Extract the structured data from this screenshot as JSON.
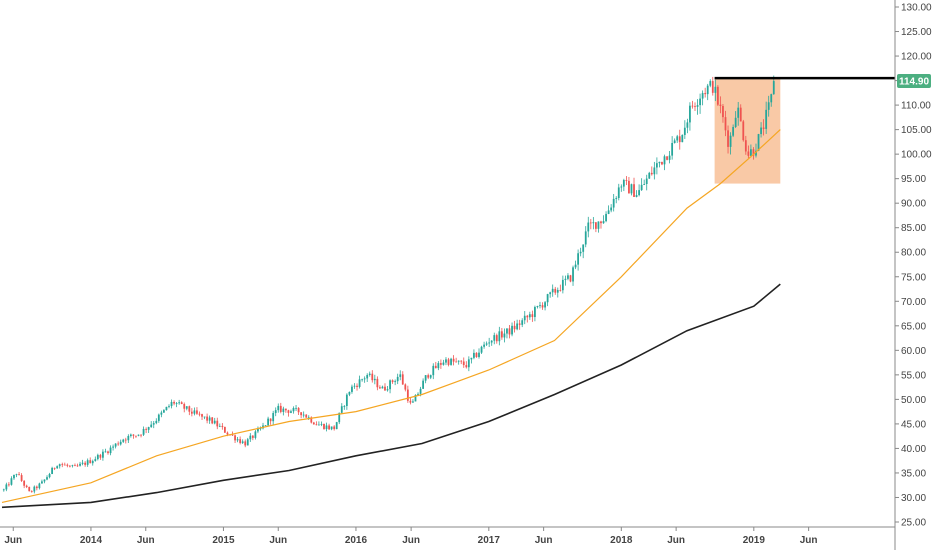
{
  "chart_data": {
    "type": "candlestick",
    "title": "",
    "y_axis": {
      "position": "right",
      "range": [
        25,
        130
      ],
      "tick_labels": [
        "130.00",
        "125.00",
        "120.00",
        "115.00",
        "110.00",
        "105.00",
        "100.00",
        "95.00",
        "90.00",
        "85.00",
        "80.00",
        "75.00",
        "70.00",
        "65.00",
        "60.00",
        "55.00",
        "50.00",
        "45.00",
        "40.00",
        "35.00",
        "30.00",
        "25.00"
      ]
    },
    "x_axis": {
      "range": [
        "2013-05-01",
        "2019-10-15"
      ],
      "tick_labels": [
        {
          "label": "Jun",
          "date": "2013-06-01"
        },
        {
          "label": "2014",
          "date": "2014-01-01"
        },
        {
          "label": "Jun",
          "date": "2014-06-01"
        },
        {
          "label": "2015",
          "date": "2015-01-01"
        },
        {
          "label": "Jun",
          "date": "2015-06-01"
        },
        {
          "label": "2016",
          "date": "2016-01-01"
        },
        {
          "label": "Jun",
          "date": "2016-06-01"
        },
        {
          "label": "2017",
          "date": "2017-01-01"
        },
        {
          "label": "Jun",
          "date": "2017-06-01"
        },
        {
          "label": "2018",
          "date": "2018-01-01"
        },
        {
          "label": "Jun",
          "date": "2018-06-01"
        },
        {
          "label": "2019",
          "date": "2019-01-01"
        },
        {
          "label": "Jun",
          "date": "2019-06-01"
        }
      ]
    },
    "price_path": [
      [
        "2013-05-06",
        31.5
      ],
      [
        "2013-06-10",
        35
      ],
      [
        "2013-07-15",
        31
      ],
      [
        "2013-08-20",
        33
      ],
      [
        "2013-10-01",
        37
      ],
      [
        "2013-11-15",
        36
      ],
      [
        "2014-01-01",
        37.5
      ],
      [
        "2014-02-15",
        39.5
      ],
      [
        "2014-04-01",
        42
      ],
      [
        "2014-05-15",
        43
      ],
      [
        "2014-07-01",
        46
      ],
      [
        "2014-08-15",
        49.5
      ],
      [
        "2014-10-15",
        47
      ],
      [
        "2014-12-01",
        45.5
      ],
      [
        "2015-01-15",
        43
      ],
      [
        "2015-03-01",
        41
      ],
      [
        "2015-04-15",
        44
      ],
      [
        "2015-06-01",
        48
      ],
      [
        "2015-08-01",
        47.5
      ],
      [
        "2015-09-15",
        45
      ],
      [
        "2015-11-01",
        44
      ],
      [
        "2015-12-15",
        52
      ],
      [
        "2016-02-01",
        55
      ],
      [
        "2016-03-15",
        52
      ],
      [
        "2016-05-01",
        55
      ],
      [
        "2016-06-01",
        48.5
      ],
      [
        "2016-07-15",
        55
      ],
      [
        "2016-09-01",
        58
      ],
      [
        "2016-11-01",
        57
      ],
      [
        "2017-01-01",
        62
      ],
      [
        "2017-03-01",
        64
      ],
      [
        "2017-05-01",
        67.5
      ],
      [
        "2017-07-01",
        72
      ],
      [
        "2017-08-15",
        75
      ],
      [
        "2017-10-01",
        85
      ],
      [
        "2017-11-15",
        87
      ],
      [
        "2018-01-01",
        94
      ],
      [
        "2018-02-15",
        92
      ],
      [
        "2018-04-01",
        97
      ],
      [
        "2018-05-15",
        101
      ],
      [
        "2018-06-15",
        104
      ],
      [
        "2018-07-15",
        110
      ],
      [
        "2018-08-15",
        113
      ],
      [
        "2018-09-10",
        114
      ],
      [
        "2018-10-05",
        108
      ],
      [
        "2018-10-25",
        102
      ],
      [
        "2018-11-15",
        110
      ],
      [
        "2018-12-15",
        100
      ],
      [
        "2019-01-01",
        101
      ],
      [
        "2019-01-20",
        104
      ],
      [
        "2019-02-10",
        109
      ],
      [
        "2019-03-01",
        114.5
      ]
    ],
    "series": [
      {
        "name": "",
        "type": "line",
        "color": "#f5a623",
        "points": [
          [
            "2013-05-01",
            29
          ],
          [
            "2014-01-01",
            33
          ],
          [
            "2014-07-01",
            38.5
          ],
          [
            "2015-01-01",
            42.5
          ],
          [
            "2015-07-01",
            45.5
          ],
          [
            "2016-01-01",
            47.5
          ],
          [
            "2016-07-01",
            51
          ],
          [
            "2017-01-01",
            56
          ],
          [
            "2017-07-01",
            62
          ],
          [
            "2018-01-01",
            75
          ],
          [
            "2018-07-01",
            89
          ],
          [
            "2018-10-01",
            94
          ],
          [
            "2019-01-01",
            100
          ],
          [
            "2019-03-15",
            105
          ]
        ]
      },
      {
        "name": "",
        "type": "line",
        "color": "#222222",
        "points": [
          [
            "2013-05-01",
            28
          ],
          [
            "2014-01-01",
            29
          ],
          [
            "2014-07-01",
            31
          ],
          [
            "2015-01-01",
            33.5
          ],
          [
            "2015-07-01",
            35.5
          ],
          [
            "2016-01-01",
            38.5
          ],
          [
            "2016-07-01",
            41
          ],
          [
            "2017-01-01",
            45.5
          ],
          [
            "2017-07-01",
            51
          ],
          [
            "2018-01-01",
            57
          ],
          [
            "2018-07-01",
            64
          ],
          [
            "2019-01-01",
            69
          ],
          [
            "2019-03-15",
            73.5
          ]
        ]
      }
    ],
    "resistance_level": 115.5,
    "highlight_box": {
      "x": [
        "2018-09-15",
        "2019-03-15"
      ],
      "y": [
        94,
        115.5
      ],
      "color": "#f5a56b"
    },
    "last_price": "114.90",
    "colors": {
      "up": "#26a69a",
      "down": "#ef5350",
      "last_price_bg": "#4caf81"
    },
    "grid": false
  }
}
